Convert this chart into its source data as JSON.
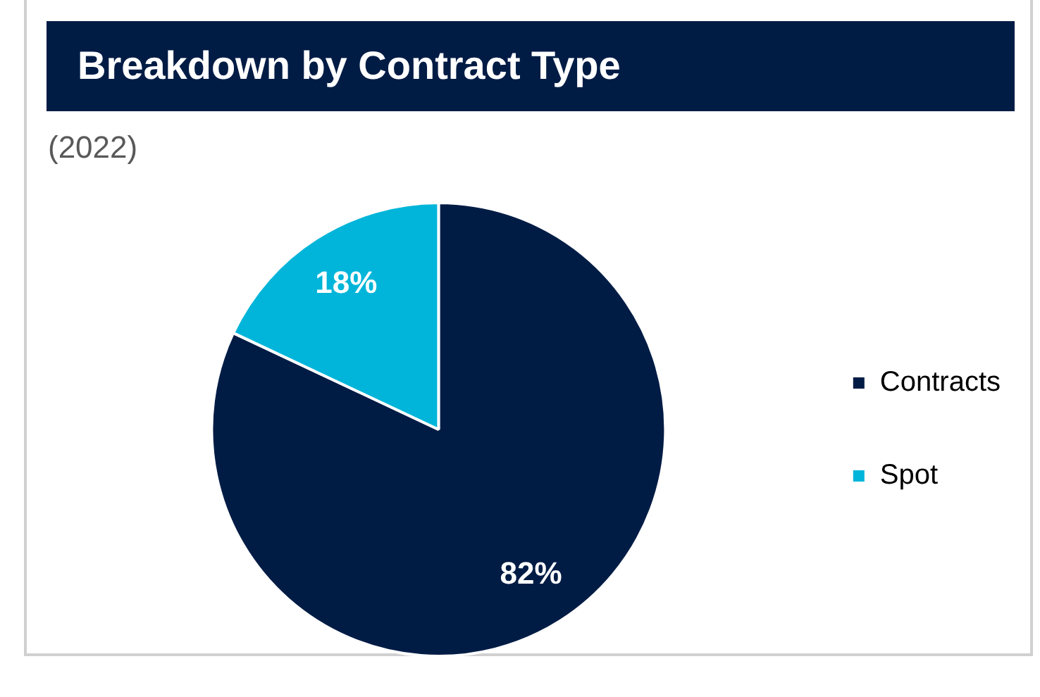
{
  "chart_data": {
    "type": "pie",
    "title": "Breakdown by Contract Type",
    "subtitle": "(2022)",
    "categories": [
      "Contracts",
      "Spot"
    ],
    "values": [
      82,
      18
    ],
    "colors": [
      "#001c45",
      "#00b5d9"
    ],
    "value_labels": [
      "82%",
      "18%"
    ],
    "legend": "right"
  }
}
